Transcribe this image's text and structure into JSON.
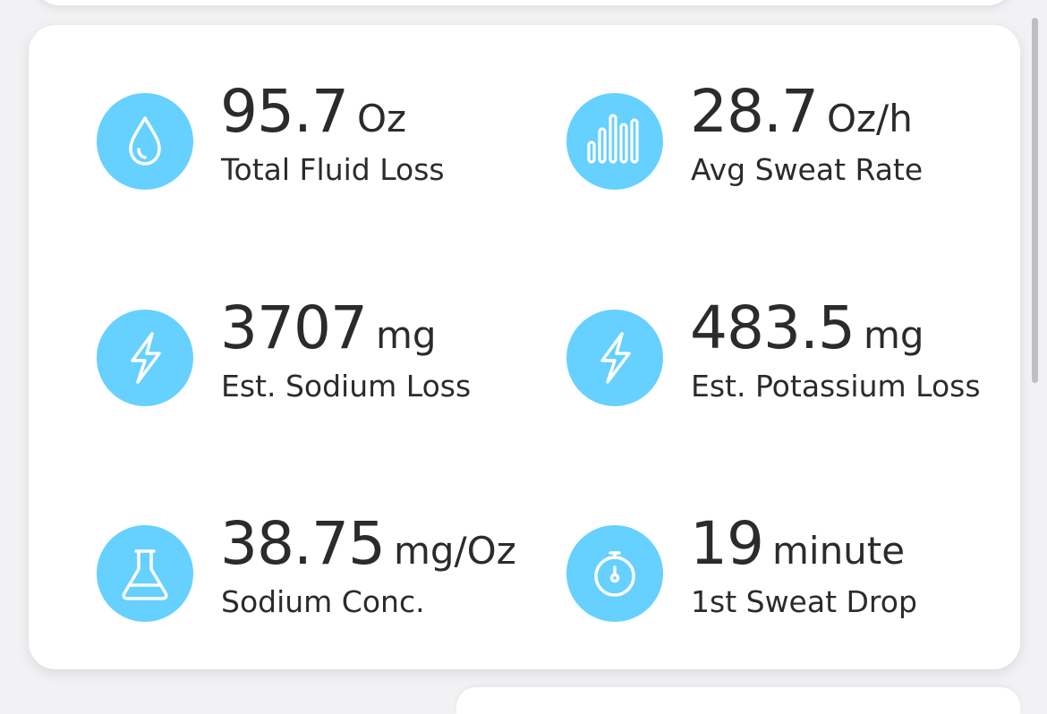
{
  "accent_color": "#66d0ff",
  "stats": [
    {
      "icon": "water-drop-icon",
      "value": "95.7",
      "unit": "Oz",
      "label": "Total Fluid Loss"
    },
    {
      "icon": "bar-chart-icon",
      "value": "28.7",
      "unit": "Oz/h",
      "label": "Avg Sweat Rate"
    },
    {
      "icon": "lightning-bolt-icon",
      "value": "3707",
      "unit": "mg",
      "label": "Est. Sodium Loss"
    },
    {
      "icon": "lightning-bolt-icon",
      "value": "483.5",
      "unit": "mg",
      "label": "Est. Potassium Loss"
    },
    {
      "icon": "flask-icon",
      "value": "38.75",
      "unit": "mg/Oz",
      "label": "Sodium Conc."
    },
    {
      "icon": "stopwatch-icon",
      "value": "19",
      "unit": "minute",
      "label": "1st Sweat Drop"
    }
  ]
}
